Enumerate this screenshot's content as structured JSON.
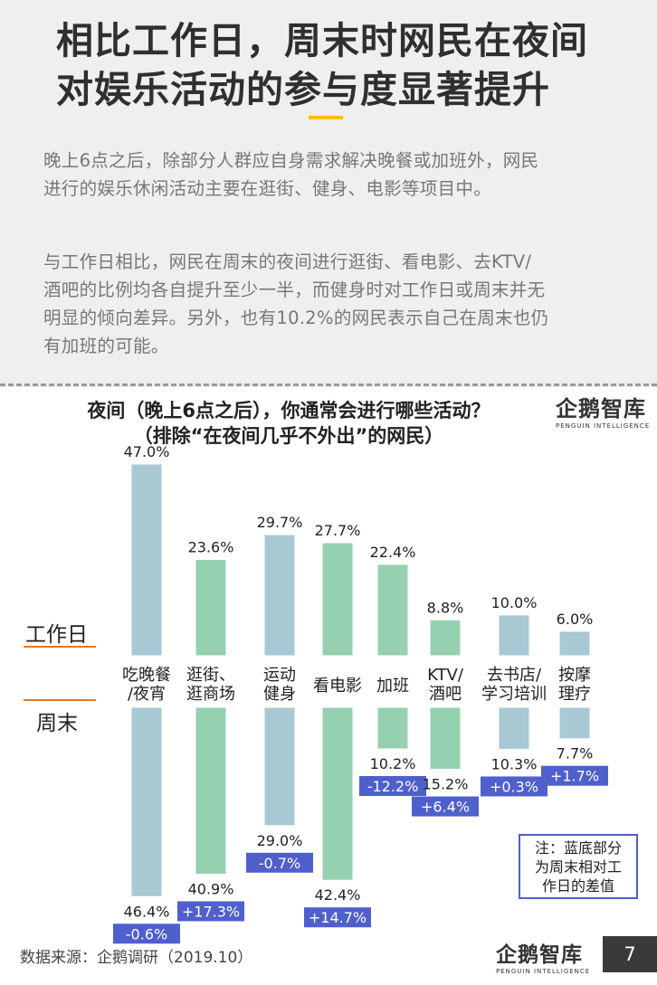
{
  "header": {
    "title_lines": [
      "相比工作日，周末时网民在夜间",
      "对娱乐活动的参与度显著提升"
    ],
    "paragraph1_lines": [
      "晚上6点之后，除部分人群应自身需求解决晚餐或加班外，网民",
      "进行的娱乐休闲活动主要在逛街、健身、电影等项目中。"
    ],
    "paragraph2_lines": [
      "与工作日相比，网民在周末的夜间进行逛街、看电影、去KTV/",
      "酒吧的比例均各自提升至少一半，而健身时对工作日或周末并无",
      "明显的倾向差异。另外，也有10.2%的网民表示自己在周末也仍",
      "有加班的可能。"
    ]
  },
  "logo": {
    "name": "企鹅智库",
    "sub": "PENGUIN INTELLIGENCE"
  },
  "chart_data": {
    "type": "bar",
    "title": "夜间（晚上6点之后），你通常会进行哪些活动？",
    "subtitle": "（排除“在夜间几乎不外出”的网民）",
    "categories": [
      [
        "吃晚餐",
        "/夜宵"
      ],
      [
        "逛街、",
        "逛商场"
      ],
      [
        "运动",
        "健身"
      ],
      [
        "看电影"
      ],
      [
        "加班"
      ],
      [
        "KTV/",
        "酒吧"
      ],
      [
        "去书店/",
        "学习培训"
      ],
      [
        "按摩",
        "理疗"
      ]
    ],
    "series": [
      {
        "name": "工作日",
        "values": [
          47.0,
          23.6,
          29.7,
          27.7,
          22.4,
          8.8,
          10.0,
          6.0
        ],
        "labels": [
          "47.0%",
          "23.6%",
          "29.7%",
          "27.7%",
          "22.4%",
          "8.8%",
          "10.0%",
          "6.0%"
        ]
      },
      {
        "name": "周末",
        "values": [
          46.4,
          40.9,
          29.0,
          42.4,
          10.2,
          15.2,
          10.3,
          7.7
        ],
        "labels": [
          "46.4%",
          "40.9%",
          "29.0%",
          "42.4%",
          "10.2%",
          "15.2%",
          "10.3%",
          "7.7%"
        ]
      }
    ],
    "differences": [
      "-0.6%",
      "+17.3%",
      "-0.7%",
      "+14.7%",
      "-12.2%",
      "+6.4%",
      "+0.3%",
      "+1.7%"
    ],
    "blue_categories": [
      0,
      2,
      6,
      7
    ],
    "colors": {
      "blue_bar": "#a8c8d4",
      "green_bar": "#95d0b0",
      "bar_stroke": "#ffffff",
      "diff_box": "#4f5fcc"
    }
  },
  "note_lines": [
    "注：蓝底部分",
    "为周末相对工",
    "作日的差值"
  ],
  "source": "数据来源：企鹅调研（2019.10）",
  "page_number": "7"
}
